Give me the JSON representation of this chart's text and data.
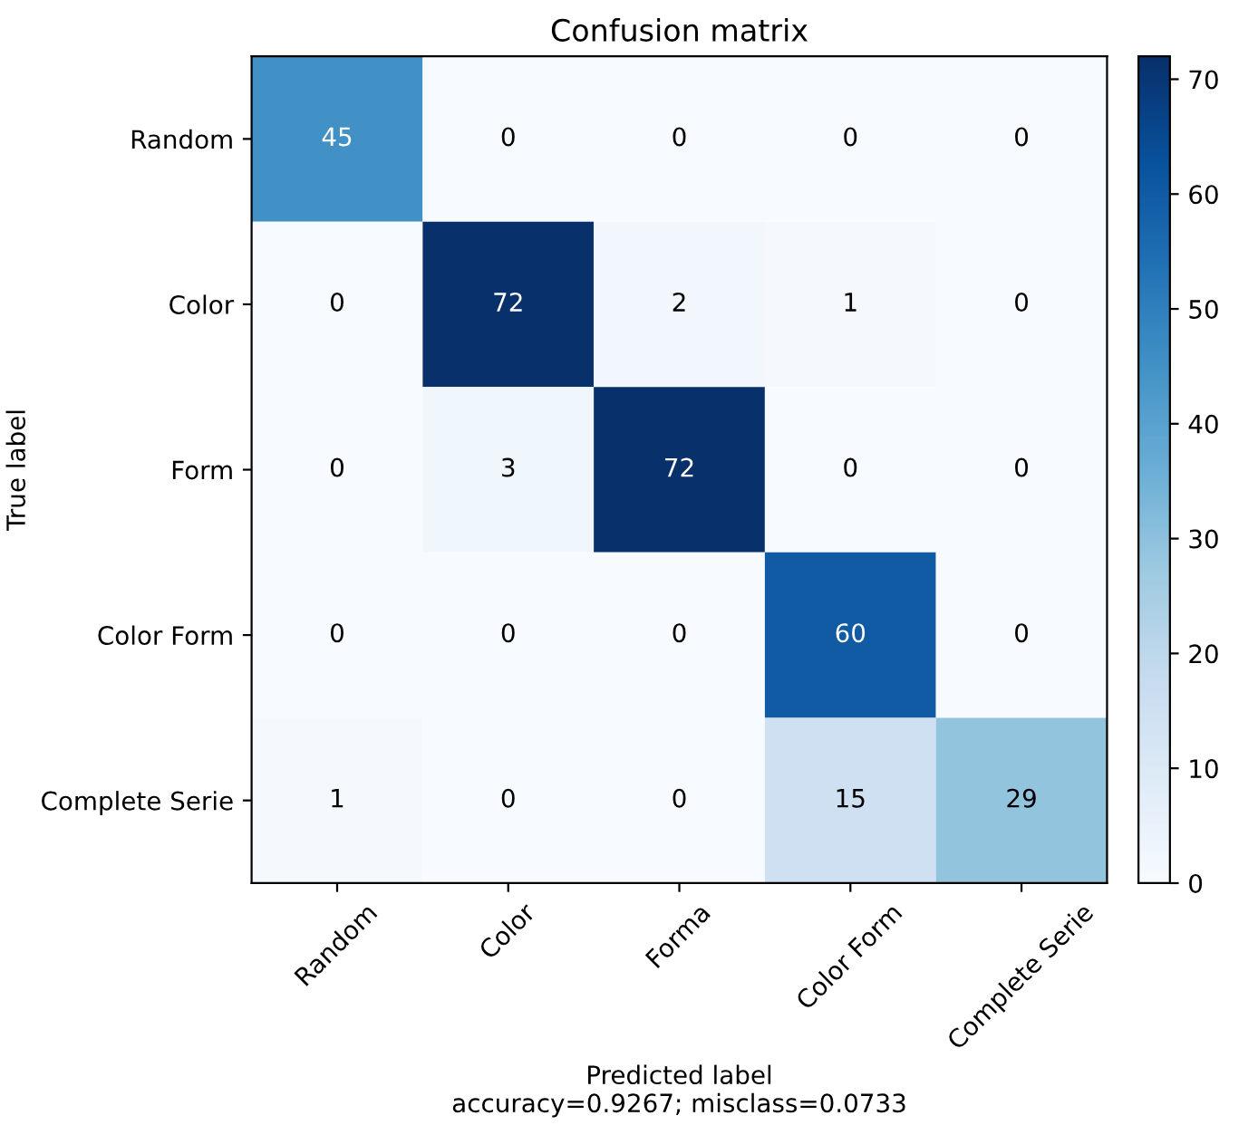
{
  "chart_data": {
    "type": "heatmap",
    "title": "Confusion matrix",
    "categories": [
      "Random",
      "Color",
      "Forma",
      "Color Form",
      "Complete Serie"
    ],
    "y_categories": [
      "Random",
      "Color",
      "Form",
      "Color Form",
      "Complete Serie"
    ],
    "cells": [
      [
        45,
        0,
        0,
        0,
        0
      ],
      [
        0,
        72,
        2,
        1,
        0
      ],
      [
        0,
        3,
        72,
        0,
        0
      ],
      [
        0,
        0,
        0,
        60,
        0
      ],
      [
        1,
        0,
        0,
        15,
        29
      ]
    ],
    "data_labels": true,
    "xlabel": "Predicted label\naccuracy=0.9267; misclass=0.0733",
    "ylabel": "True label",
    "clim": [
      0,
      72
    ],
    "cticks": [
      0,
      10,
      20,
      30,
      40,
      50,
      60,
      70
    ]
  }
}
